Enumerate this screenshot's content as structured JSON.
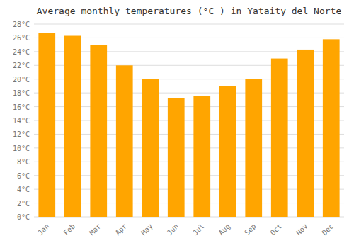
{
  "chart_data": {
    "type": "bar",
    "title": "Average monthly temperatures (°C ) in Yataity del Norte",
    "categories": [
      "Jan",
      "Feb",
      "Mar",
      "Apr",
      "May",
      "Jun",
      "Jul",
      "Aug",
      "Sep",
      "Oct",
      "Nov",
      "Dec"
    ],
    "values": [
      26.7,
      26.3,
      25.0,
      22.0,
      20.0,
      17.2,
      17.5,
      19.0,
      20.0,
      23.0,
      24.3,
      25.8
    ],
    "color": "#FFA500",
    "ylim": [
      0,
      28
    ],
    "yticks": [
      {
        "value": 0,
        "label": "0°C"
      },
      {
        "value": 2,
        "label": "2°C"
      },
      {
        "value": 4,
        "label": "4°C"
      },
      {
        "value": 6,
        "label": "6°C"
      },
      {
        "value": 8,
        "label": "8°C"
      },
      {
        "value": 10,
        "label": "10°C"
      },
      {
        "value": 12,
        "label": "12°C"
      },
      {
        "value": 14,
        "label": "14°C"
      },
      {
        "value": 16,
        "label": "16°C"
      },
      {
        "value": 18,
        "label": "18°C"
      },
      {
        "value": 20,
        "label": "20°C"
      },
      {
        "value": 22,
        "label": "22°C"
      },
      {
        "value": 24,
        "label": "24°C"
      },
      {
        "value": 26,
        "label": "26°C"
      },
      {
        "value": 28,
        "label": "28°C"
      }
    ],
    "grid": true
  }
}
